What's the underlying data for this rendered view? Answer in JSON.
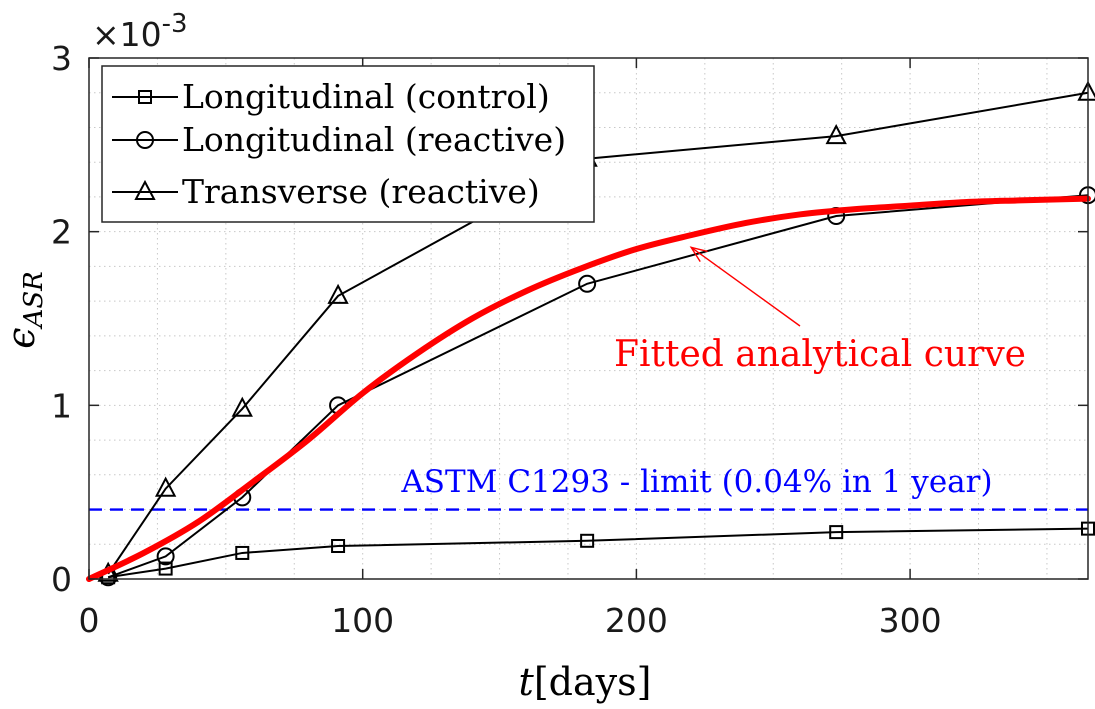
{
  "chart_data": {
    "type": "line",
    "x_axis": {
      "label_var": "t",
      "label_unit": "[days]",
      "lim": [
        0,
        365
      ],
      "ticks": [
        0,
        100,
        200,
        300
      ],
      "tick_labels": [
        "0",
        "100",
        "200",
        "300"
      ]
    },
    "y_axis": {
      "label_main": "ϵ",
      "label_sub": "ASR",
      "lim": [
        0,
        3
      ],
      "ticks": [
        0,
        1,
        2,
        3
      ],
      "tick_labels": [
        "0",
        "1",
        "2",
        "3"
      ],
      "multiplier_base": "×10",
      "multiplier_exp": "-3"
    },
    "grid": "minor-dotted",
    "legend_position": "top-left",
    "series": [
      {
        "name": "Longitudinal (control)",
        "marker": "square",
        "color": "#000000",
        "x": [
          7,
          28,
          56,
          91,
          182,
          273,
          365
        ],
        "y": [
          0.01,
          0.06,
          0.15,
          0.19,
          0.22,
          0.27,
          0.29
        ]
      },
      {
        "name": "Longitudinal (reactive)",
        "marker": "circle",
        "color": "#000000",
        "x": [
          7,
          28,
          56,
          91,
          182,
          273,
          365
        ],
        "y": [
          0.01,
          0.13,
          0.47,
          1.0,
          1.7,
          2.09,
          2.21
        ]
      },
      {
        "name": "Transverse (reactive)",
        "marker": "triangle",
        "color": "#000000",
        "x": [
          7,
          28,
          56,
          91,
          182,
          273,
          365
        ],
        "y": [
          0.03,
          0.52,
          0.98,
          1.63,
          2.42,
          2.55,
          2.8
        ]
      }
    ],
    "fitted_curve": {
      "color": "#ff0000",
      "x": [
        0,
        20,
        40,
        60,
        80,
        100,
        120,
        140,
        160,
        180,
        200,
        220,
        240,
        260,
        280,
        300,
        320,
        340,
        365
      ],
      "y": [
        0.0,
        0.15,
        0.33,
        0.56,
        0.8,
        1.07,
        1.3,
        1.5,
        1.66,
        1.79,
        1.9,
        1.98,
        2.05,
        2.1,
        2.13,
        2.15,
        2.17,
        2.18,
        2.19
      ]
    },
    "limit_line": {
      "y": 0.4,
      "color": "#0000ff",
      "label": "ASTM C1293 - limit (0.04% in 1 year)"
    },
    "annotation": {
      "text": "Fitted analytical curve",
      "color": "#ff0000",
      "arrow_target": [
        220,
        1.91
      ]
    }
  }
}
